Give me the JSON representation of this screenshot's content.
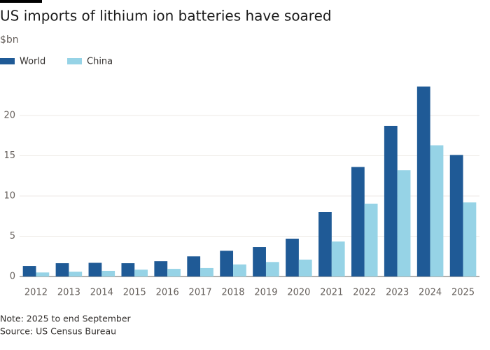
{
  "chart_data": {
    "type": "bar",
    "title": "US imports of lithium ion batteries have soared",
    "subtitle": "$bn",
    "categories": [
      "2012",
      "2013",
      "2014",
      "2015",
      "2016",
      "2017",
      "2018",
      "2019",
      "2020",
      "2021",
      "2022",
      "2023",
      "2024",
      "2025"
    ],
    "series": [
      {
        "name": "World",
        "color": "#1f5a96",
        "values": [
          1.3,
          1.65,
          1.7,
          1.65,
          1.9,
          2.5,
          3.2,
          3.65,
          4.7,
          8.0,
          13.6,
          18.7,
          23.6,
          15.1
        ]
      },
      {
        "name": "China",
        "color": "#96d3e6",
        "values": [
          0.5,
          0.6,
          0.7,
          0.85,
          0.95,
          1.05,
          1.5,
          1.8,
          2.1,
          4.35,
          9.05,
          13.2,
          16.3,
          9.2
        ]
      }
    ],
    "ylim": [
      0,
      24
    ],
    "yticks": [
      0,
      5,
      10,
      15,
      20
    ],
    "grid": true,
    "note": "Note: 2025 to end September",
    "source": "Source: US Census Bureau"
  }
}
